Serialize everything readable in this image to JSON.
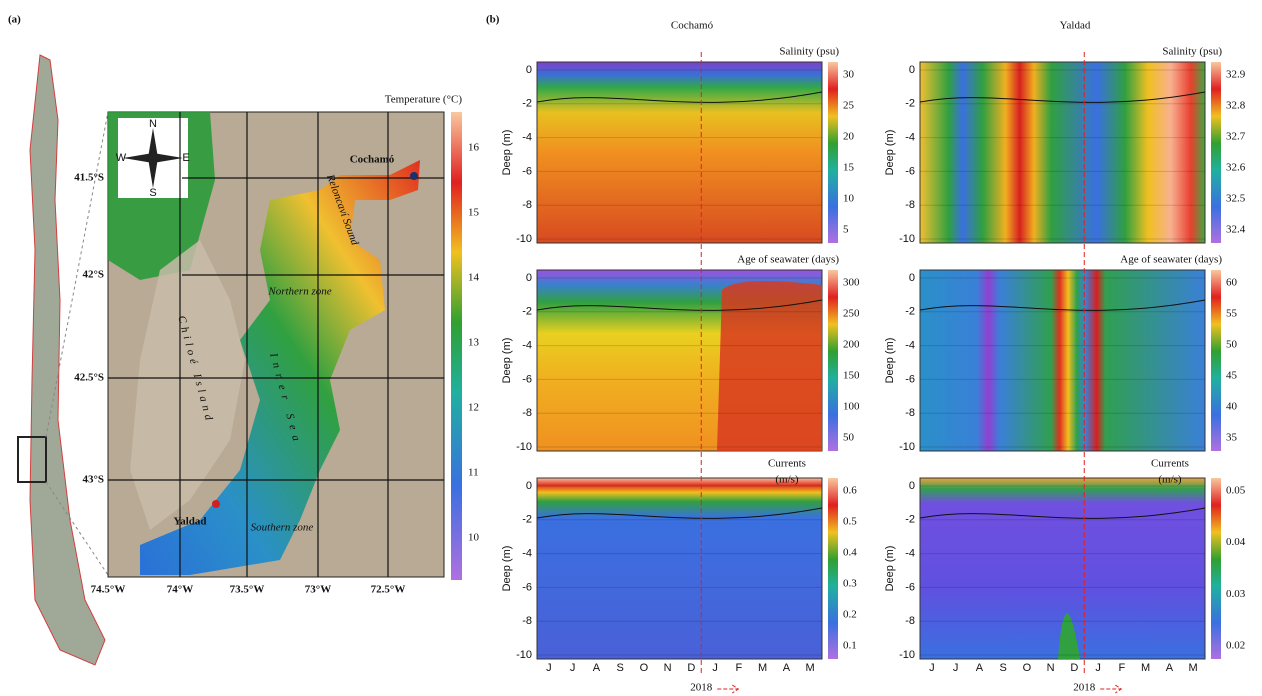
{
  "panel_a": {
    "label": "(a)",
    "colorbar_title": "Temperature (°C)",
    "colorbar_ticks": [
      16,
      15,
      14,
      13,
      12,
      11,
      10
    ],
    "lat_labels": [
      "41.5°S",
      "42°S",
      "42.5°S",
      "43°S"
    ],
    "lon_labels": [
      "74.5°W",
      "74°W",
      "73.5°W",
      "73°W",
      "72.5°W"
    ],
    "compass": [
      "N",
      "S",
      "E",
      "W"
    ],
    "places": [
      "Cochamó",
      "Yaldad"
    ],
    "map_labels": [
      "Chiloé Island",
      "Northern zone",
      "Southern zone",
      "Inner Sea",
      "Reloncaví Sound"
    ]
  },
  "panel_b": {
    "label": "(b)",
    "y_label": "Deep (m)",
    "yticks": [
      0,
      -2,
      -4,
      -6,
      -8,
      -10
    ],
    "months": [
      "J",
      "J",
      "A",
      "S",
      "O",
      "N",
      "D",
      "J",
      "F",
      "M",
      "A",
      "M"
    ],
    "year": "2018",
    "columns": [
      {
        "title": "Cochamó",
        "plots": [
          {
            "title": "Salinity (psu)",
            "colorbar_ticks": [
              30,
              25,
              20,
              15,
              10,
              5
            ]
          },
          {
            "title": "Age of seawater (days)",
            "colorbar_ticks": [
              300,
              250,
              200,
              150,
              100,
              50
            ]
          },
          {
            "title": "Currents",
            "unit": "(m/s)",
            "colorbar_ticks": [
              0.6,
              0.5,
              0.4,
              0.3,
              0.2,
              0.1
            ]
          }
        ]
      },
      {
        "title": "Yaldad",
        "plots": [
          {
            "title": "Salinity (psu)",
            "colorbar_ticks": [
              32.9,
              32.8,
              32.7,
              32.6,
              32.5,
              32.4
            ]
          },
          {
            "title": "Age of seawater (days)",
            "colorbar_ticks": [
              60,
              55,
              50,
              45,
              40,
              35
            ]
          },
          {
            "title": "Currents",
            "unit": "(m/s)",
            "colorbar_ticks": [
              0.05,
              0.04,
              0.03,
              0.02
            ]
          }
        ]
      }
    ]
  }
}
